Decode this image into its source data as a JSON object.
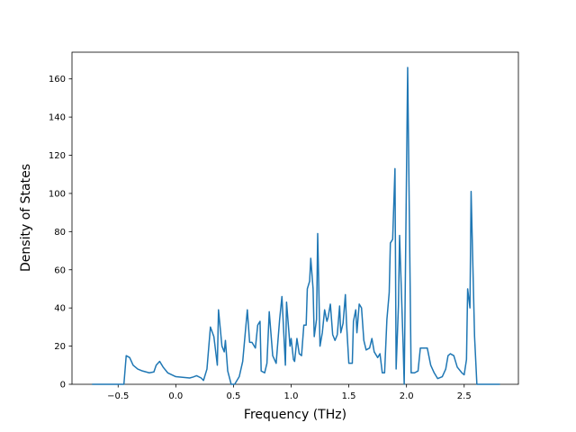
{
  "chart_data": {
    "type": "line",
    "x_label": "Frequency (THz)",
    "y_label": "Density of States",
    "color": "#1f77b4",
    "xlim": [
      -0.9,
      2.97
    ],
    "ylim": [
      0,
      174
    ],
    "xticks": [
      {
        "value": -0.5,
        "label": "−0.5"
      },
      {
        "value": 0,
        "label": "0.0"
      },
      0.5,
      {
        "value": 1,
        "label": "1.0"
      },
      1.5,
      {
        "value": 2,
        "label": "2.0"
      },
      2.5
    ],
    "yticks": [
      0,
      20,
      40,
      60,
      80,
      100,
      120,
      140,
      160
    ],
    "x": [
      -0.726,
      -0.45,
      -0.43,
      -0.4,
      -0.37,
      -0.33,
      -0.29,
      -0.23,
      -0.19,
      -0.17,
      -0.14,
      -0.11,
      -0.07,
      0.0,
      0.12,
      0.15,
      0.18,
      0.22,
      0.24,
      0.27,
      0.3,
      0.33,
      0.36,
      0.37,
      0.4,
      0.42,
      0.43,
      0.45,
      0.48,
      0.51,
      0.55,
      0.58,
      0.62,
      0.64,
      0.66,
      0.69,
      0.71,
      0.73,
      0.74,
      0.77,
      0.79,
      0.81,
      0.84,
      0.87,
      0.9,
      0.92,
      0.95,
      0.96,
      0.99,
      1.0,
      1.02,
      1.03,
      1.05,
      1.07,
      1.09,
      1.11,
      1.13,
      1.14,
      1.16,
      1.17,
      1.19,
      1.2,
      1.22,
      1.23,
      1.25,
      1.27,
      1.29,
      1.31,
      1.32,
      1.34,
      1.36,
      1.38,
      1.4,
      1.42,
      1.43,
      1.45,
      1.47,
      1.48,
      1.5,
      1.53,
      1.54,
      1.56,
      1.57,
      1.59,
      1.61,
      1.63,
      1.65,
      1.68,
      1.7,
      1.72,
      1.75,
      1.77,
      1.79,
      1.81,
      1.83,
      1.85,
      1.86,
      1.88,
      1.9,
      1.91,
      1.93,
      1.94,
      1.97,
      1.98,
      2.01,
      2.04,
      2.07,
      2.1,
      2.12,
      2.16,
      2.18,
      2.21,
      2.24,
      2.27,
      2.31,
      2.34,
      2.36,
      2.38,
      2.41,
      2.44,
      2.48,
      2.5,
      2.52,
      2.53,
      2.55,
      2.56,
      2.59,
      2.61,
      2.81
    ],
    "values": [
      0,
      0,
      15,
      14,
      10,
      8,
      7,
      6,
      6.5,
      10,
      12,
      9,
      6,
      4,
      3.3,
      3.8,
      4.5,
      3.3,
      2,
      8,
      30,
      25,
      10,
      39,
      20,
      17,
      23,
      7,
      0,
      0,
      4,
      12,
      39,
      22,
      22,
      19,
      31,
      33,
      7,
      6,
      11,
      38,
      15,
      11,
      34,
      46,
      10,
      43,
      20,
      24,
      13,
      12,
      24,
      16,
      15,
      31,
      31,
      50,
      54,
      66,
      50,
      25,
      34,
      79,
      20,
      27,
      39,
      33,
      35,
      42,
      26,
      23,
      26,
      41,
      27,
      32,
      47,
      32,
      11,
      11,
      33,
      39,
      27,
      42,
      40,
      23,
      18,
      19,
      24,
      17,
      14,
      16,
      6,
      6,
      34,
      48,
      74,
      76,
      113,
      8,
      41,
      78,
      22,
      0,
      166,
      6,
      6,
      7,
      19,
      19,
      19,
      10,
      6,
      3,
      4,
      8,
      15,
      16,
      15,
      9,
      6,
      5,
      13,
      50,
      40,
      101,
      25,
      0,
      0
    ]
  }
}
